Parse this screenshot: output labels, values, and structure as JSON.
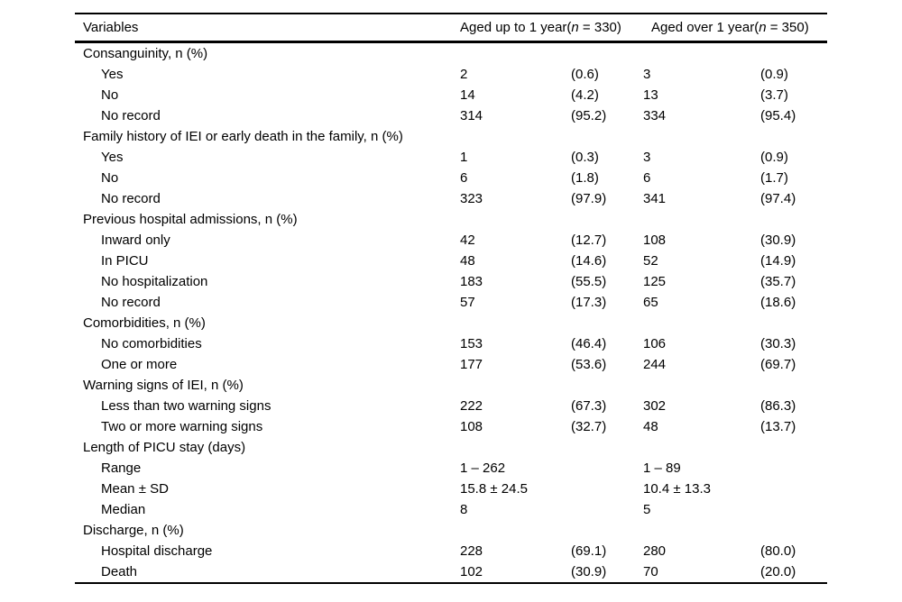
{
  "page": {
    "background_color": "#ffffff",
    "text_color": "#000000",
    "rule_color": "#000000"
  },
  "table": {
    "header": {
      "variables_label": "Variables",
      "col1": {
        "prefix": "Aged up to 1 year(",
        "n_symbol": "n",
        "suffix": " = 330)"
      },
      "col2": {
        "prefix": "Aged over 1 year(",
        "n_symbol": "n",
        "suffix": " = 350)"
      }
    },
    "sections": [
      {
        "label": "Consanguinity, n (%)",
        "rows": [
          {
            "label": "Yes",
            "n1": "2",
            "p1": "(0.6)",
            "n2": "3",
            "p2": "(0.9)"
          },
          {
            "label": "No",
            "n1": "14",
            "p1": "(4.2)",
            "n2": "13",
            "p2": "(3.7)"
          },
          {
            "label": "No record",
            "n1": "314",
            "p1": "(95.2)",
            "n2": "334",
            "p2": "(95.4)"
          }
        ]
      },
      {
        "label": "Family history of IEI or early death in the family, n (%)",
        "rows": [
          {
            "label": "Yes",
            "n1": "1",
            "p1": "(0.3)",
            "n2": "3",
            "p2": "(0.9)"
          },
          {
            "label": "No",
            "n1": "6",
            "p1": "(1.8)",
            "n2": "6",
            "p2": "(1.7)"
          },
          {
            "label": "No record",
            "n1": "323",
            "p1": "(97.9)",
            "n2": "341",
            "p2": "(97.4)"
          }
        ]
      },
      {
        "label": "Previous hospital admissions, n (%)",
        "rows": [
          {
            "label": "Inward only",
            "n1": "42",
            "p1": "(12.7)",
            "n2": "108",
            "p2": "(30.9)"
          },
          {
            "label": "In PICU",
            "n1": "48",
            "p1": "(14.6)",
            "n2": "52",
            "p2": "(14.9)"
          },
          {
            "label": "No hospitalization",
            "n1": "183",
            "p1": "(55.5)",
            "n2": "125",
            "p2": "(35.7)"
          },
          {
            "label": "No record",
            "n1": "57",
            "p1": "(17.3)",
            "n2": "65",
            "p2": "(18.6)"
          }
        ]
      },
      {
        "label": "Comorbidities, n (%)",
        "rows": [
          {
            "label": "No comorbidities",
            "n1": "153",
            "p1": "(46.4)",
            "n2": "106",
            "p2": "(30.3)"
          },
          {
            "label": "One or more",
            "n1": "177",
            "p1": "(53.6)",
            "n2": "244",
            "p2": "(69.7)"
          }
        ]
      },
      {
        "label": "Warning signs of IEI, n (%)",
        "rows": [
          {
            "label": "Less than two warning signs",
            "n1": "222",
            "p1": "(67.3)",
            "n2": "302",
            "p2": "(86.3)"
          },
          {
            "label": "Two or more warning signs",
            "n1": "108",
            "p1": "(32.7)",
            "n2": "48",
            "p2": "(13.7)"
          }
        ]
      },
      {
        "label": "Length of PICU stay (days)",
        "rows": [
          {
            "label": "Range",
            "n1": "1 – 262",
            "p1": "",
            "n2": "1 – 89",
            "p2": ""
          },
          {
            "label": "Mean ± SD",
            "n1": "15.8 ± 24.5",
            "p1": "",
            "n2": "10.4 ± 13.3",
            "p2": ""
          },
          {
            "label": "Median",
            "n1": "8",
            "p1": "",
            "n2": "5",
            "p2": ""
          }
        ]
      },
      {
        "label": "Discharge, n (%)",
        "rows": [
          {
            "label": "Hospital discharge",
            "n1": "228",
            "p1": "(69.1)",
            "n2": "280",
            "p2": "(80.0)"
          },
          {
            "label": "Death",
            "n1": "102",
            "p1": "(30.9)",
            "n2": "70",
            "p2": "(20.0)"
          }
        ]
      }
    ]
  }
}
